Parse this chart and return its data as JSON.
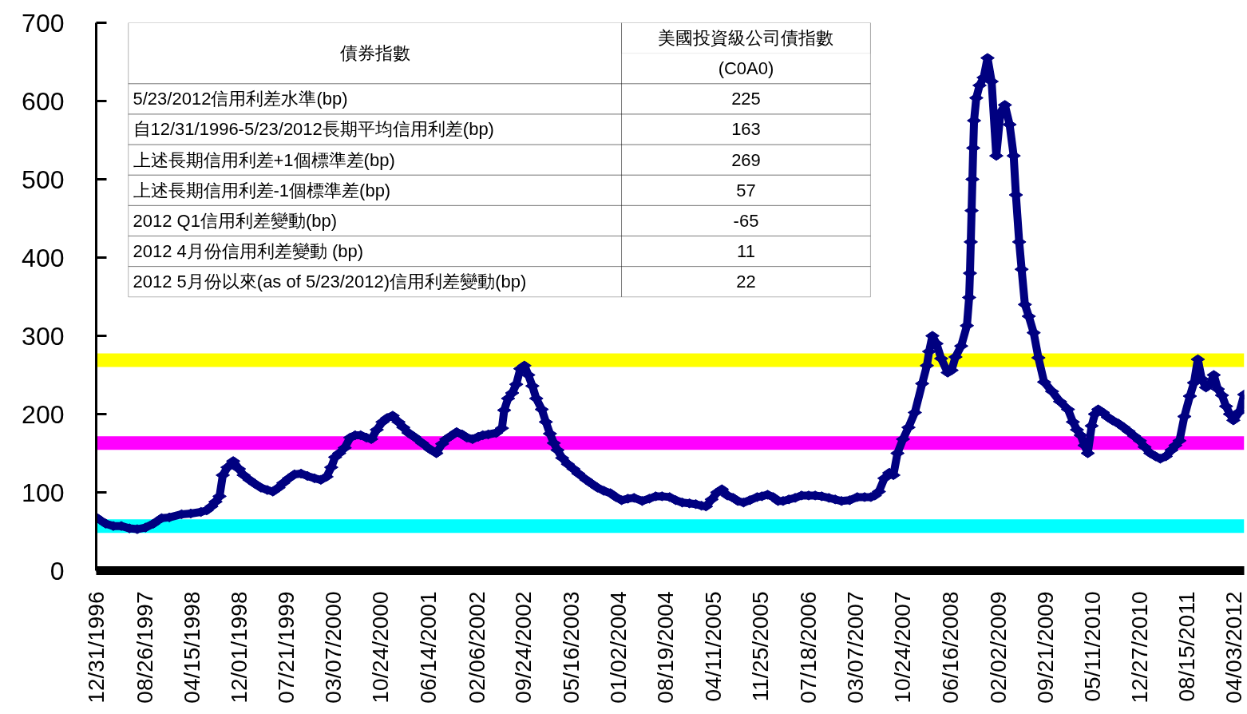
{
  "chart_data": {
    "type": "line",
    "annotations": [
      "債券指數",
      "美國投資級公司債指數",
      "(C0A0)",
      "5/23/2012信用利差水準(bp)",
      "225",
      "自12/31/1996-5/23/2012長期平均信用利差(bp)",
      "163",
      "上述長期信用利差+1個標準差(bp)",
      "269",
      "上述長期信用利差-1個標準差(bp)",
      "57",
      "2012 Q1信用利差變動(bp)",
      "-65",
      "2012 4月份信用利差變動  (bp)",
      "11",
      "2012 5月份以來(as of 5/23/2012)信用利差變動(bp)",
      "22"
    ],
    "x": [
      "1996-12-31",
      "1997-02-16",
      "1997-03-25",
      "1997-05-03",
      "1997-06-12",
      "1997-07-20",
      "1997-08-29",
      "1997-10-07",
      "1997-11-16",
      "1997-12-24",
      "1998-02-22",
      "1998-04-08",
      "1998-05-28",
      "1998-06-25",
      "1998-07-18",
      "1998-08-07",
      "1998-08-27",
      "1998-09-12",
      "1998-10-05",
      "1998-11-02",
      "1998-11-30",
      "1998-12-23",
      "1999-01-20",
      "1999-02-16",
      "1999-03-18",
      "1999-04-18",
      "1999-05-15",
      "1999-06-12",
      "1999-07-05",
      "1999-08-02",
      "1999-08-29",
      "1999-09-30",
      "1999-10-31",
      "1999-12-05",
      "2000-01-05",
      "2000-02-02",
      "2000-02-25",
      "2000-03-15",
      "2000-04-04",
      "2000-05-01",
      "2000-05-28",
      "2000-06-21",
      "2000-07-18",
      "2000-08-15",
      "2000-09-08",
      "2000-10-05",
      "2000-11-02",
      "2000-11-25",
      "2000-12-22",
      "2001-01-19",
      "2001-02-12",
      "2001-03-09",
      "2001-04-06",
      "2001-05-15",
      "2001-06-23",
      "2001-07-24",
      "2001-08-21",
      "2001-09-10",
      "2001-10-03",
      "2001-10-31",
      "2001-11-27",
      "2001-12-20",
      "2002-01-17",
      "2002-02-14",
      "2002-03-08",
      "2002-04-04",
      "2002-05-13",
      "2002-06-10",
      "2002-06-21",
      "2002-07-10",
      "2002-07-30",
      "2002-08-19",
      "2002-09-08",
      "2002-09-28",
      "2002-10-17",
      "2002-11-06",
      "2002-11-25",
      "2002-12-22",
      "2003-01-11",
      "2003-01-31",
      "2003-02-19",
      "2003-03-09",
      "2003-04-01",
      "2003-04-29",
      "2003-05-26",
      "2003-06-19",
      "2003-07-28",
      "2003-08-24",
      "2003-09-21",
      "2003-10-22",
      "2003-11-23",
      "2003-12-20",
      "2004-01-17",
      "2004-02-17",
      "2004-03-18",
      "2004-04-27",
      "2004-06-01",
      "2004-07-02",
      "2004-08-02",
      "2004-09-08",
      "2004-10-08",
      "2004-11-09",
      "2004-12-14",
      "2005-01-14",
      "2005-02-11",
      "2005-03-05",
      "2005-04-02",
      "2005-04-29",
      "2005-05-22",
      "2005-06-18",
      "2005-07-16",
      "2005-08-08",
      "2005-09-05",
      "2005-10-06",
      "2005-11-11",
      "2005-12-04",
      "2006-01-01",
      "2006-01-28",
      "2006-02-21",
      "2006-03-18",
      "2006-04-15",
      "2006-05-16",
      "2006-06-16",
      "2006-07-21",
      "2006-08-22",
      "2006-09-23",
      "2006-10-28",
      "2006-11-28",
      "2006-12-29",
      "2007-02-07",
      "2007-03-16",
      "2007-04-21",
      "2007-05-22",
      "2007-06-10",
      "2007-06-30",
      "2007-07-27",
      "2007-08-20",
      "2007-09-09",
      "2007-09-29",
      "2007-10-26",
      "2007-11-22",
      "2007-12-23",
      "2008-01-28",
      "2008-02-20",
      "2008-03-02",
      "2008-03-18",
      "2008-04-07",
      "2008-04-30",
      "2008-06-01",
      "2008-06-20",
      "2008-07-09",
      "2008-08-06",
      "2008-09-03",
      "2008-09-14",
      "2008-09-18",
      "2008-09-22",
      "2008-09-26",
      "2008-09-30",
      "2008-10-04",
      "2008-10-08",
      "2008-10-19",
      "2008-11-04",
      "2008-11-24",
      "2008-12-13",
      "2009-01-02",
      "2009-01-25",
      "2009-02-14",
      "2009-03-08",
      "2009-03-31",
      "2009-04-20",
      "2009-05-01",
      "2009-05-17",
      "2009-05-29",
      "2009-06-14",
      "2009-07-03",
      "2009-07-27",
      "2009-08-19",
      "2009-09-16",
      "2009-10-25",
      "2009-12-03",
      "2010-01-11",
      "2010-02-04",
      "2010-02-24",
      "2010-03-14",
      "2010-04-02",
      "2010-04-18",
      "2010-05-07",
      "2010-05-23",
      "2010-06-08",
      "2010-07-01",
      "2010-07-25",
      "2010-08-17",
      "2010-09-14",
      "2010-10-11",
      "2010-11-04",
      "2010-12-01",
      "2010-12-29",
      "2011-01-21",
      "2011-02-18",
      "2011-03-16",
      "2011-04-08",
      "2011-05-05",
      "2011-06-02",
      "2011-06-21",
      "2011-07-11",
      "2011-08-04",
      "2011-08-31",
      "2011-09-20",
      "2011-10-09",
      "2011-10-28",
      "2011-11-18",
      "2011-12-07",
      "2011-12-26",
      "2012-01-15",
      "2012-02-04",
      "2012-02-24",
      "2012-03-14",
      "2012-03-31",
      "2012-04-30",
      "2012-05-23"
    ],
    "series": [
      {
        "color": "#000080",
        "values": [
          68,
          60,
          57,
          57,
          54,
          53,
          55,
          60,
          67,
          68,
          72,
          73,
          75,
          77,
          82,
          88,
          95,
          122,
          132,
          140,
          130,
          122,
          116,
          111,
          106,
          103,
          101,
          106,
          112,
          118,
          123,
          124,
          121,
          118,
          116,
          120,
          132,
          145,
          150,
          157,
          170,
          173,
          173,
          170,
          168,
          180,
          190,
          195,
          198,
          190,
          183,
          176,
          171,
          163,
          155,
          150,
          162,
          168,
          172,
          177,
          174,
          170,
          168,
          171,
          173,
          174,
          176,
          182,
          205,
          220,
          227,
          238,
          258,
          262,
          250,
          236,
          220,
          206,
          190,
          175,
          163,
          154,
          144,
          136,
          130,
          124,
          116,
          111,
          106,
          102,
          99,
          94,
          90,
          92,
          93,
          89,
          92,
          95,
          95,
          94,
          90,
          87,
          86,
          85,
          83,
          82,
          91,
          100,
          104,
          96,
          93,
          89,
          87,
          90,
          94,
          95,
          97,
          94,
          89,
          89,
          91,
          93,
          96,
          96,
          96,
          95,
          93,
          91,
          89,
          90,
          94,
          94,
          94,
          96,
          101,
          118,
          125,
          122,
          150,
          168,
          183,
          202,
          239,
          262,
          280,
          300,
          290,
          271,
          253,
          256,
          273,
          287,
          313,
          349,
          380,
          420,
          460,
          500,
          540,
          575,
          604,
          620,
          630,
          655,
          625,
          530,
          585,
          595,
          570,
          530,
          480,
          420,
          385,
          340,
          325,
          304,
          272,
          241,
          229,
          216,
          206,
          190,
          180,
          173,
          160,
          150,
          185,
          200,
          206,
          202,
          196,
          192,
          188,
          183,
          178,
          172,
          166,
          158,
          150,
          146,
          143,
          146,
          154,
          160,
          166,
          197,
          223,
          240,
          270,
          245,
          234,
          238,
          250,
          232,
          224,
          210,
          200,
          192,
          203,
          225
        ]
      }
    ],
    "xlim": [
      "1996-12-31",
      "2012-05-23"
    ],
    "xticks": [
      {
        "value": "1996-12-31",
        "label": "12/31/1996"
      },
      {
        "value": "1997-08-26",
        "label": "08/26/1997"
      },
      {
        "value": "1998-04-15",
        "label": "04/15/1998"
      },
      {
        "value": "1998-12-01",
        "label": "12/01/1998"
      },
      {
        "value": "1999-07-21",
        "label": "07/21/1999"
      },
      {
        "value": "2000-03-07",
        "label": "03/07/2000"
      },
      {
        "value": "2000-10-24",
        "label": "10/24/2000"
      },
      {
        "value": "2001-06-14",
        "label": "06/14/2001"
      },
      {
        "value": "2002-02-06",
        "label": "02/06/2002"
      },
      {
        "value": "2002-09-24",
        "label": "09/24/2002"
      },
      {
        "value": "2003-05-16",
        "label": "05/16/2003"
      },
      {
        "value": "2004-01-02",
        "label": "01/02/2004"
      },
      {
        "value": "2004-08-19",
        "label": "08/19/2004"
      },
      {
        "value": "2005-04-11",
        "label": "04/11/2005"
      },
      {
        "value": "2005-11-25",
        "label": "11/25/2005"
      },
      {
        "value": "2006-07-18",
        "label": "07/18/2006"
      },
      {
        "value": "2007-03-07",
        "label": "03/07/2007"
      },
      {
        "value": "2007-10-24",
        "label": "10/24/2007"
      },
      {
        "value": "2008-06-16",
        "label": "06/16/2008"
      },
      {
        "value": "2009-02-02",
        "label": "02/02/2009"
      },
      {
        "value": "2009-09-21",
        "label": "09/21/2009"
      },
      {
        "value": "2010-05-11",
        "label": "05/11/2010"
      },
      {
        "value": "2010-12-27",
        "label": "12/27/2010"
      },
      {
        "value": "2011-08-15",
        "label": "08/15/2011"
      },
      {
        "value": "2012-04-03",
        "label": "04/03/2012"
      }
    ],
    "ylim": [
      0,
      700
    ],
    "yticks": [
      0,
      100,
      200,
      300,
      400,
      500,
      600,
      700
    ],
    "ref_lines": [
      {
        "axis": "y",
        "value": 269,
        "color": "#ffff00"
      },
      {
        "axis": "y",
        "value": 163,
        "color": "#ff00ff"
      },
      {
        "axis": "y",
        "value": 57,
        "color": "#00ffff"
      }
    ],
    "marker": "diamond",
    "line_style": "solid",
    "grid": false
  }
}
